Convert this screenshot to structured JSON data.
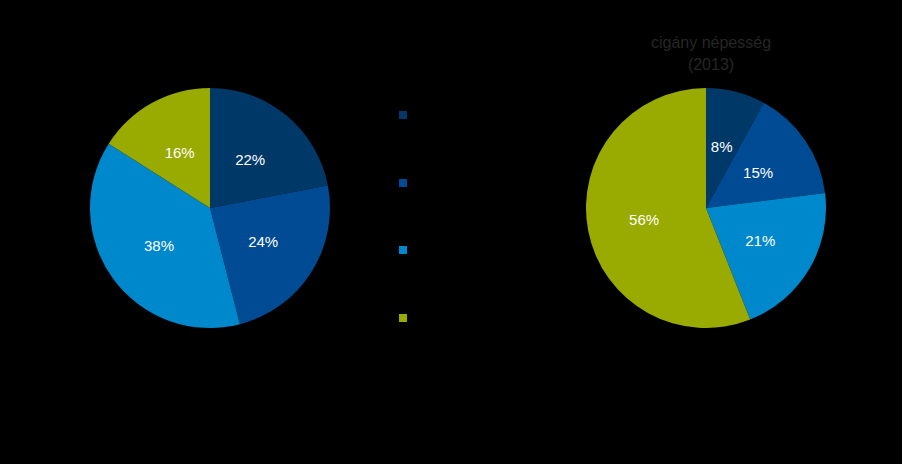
{
  "chart_data": [
    {
      "type": "pie",
      "values": [
        22,
        24,
        38,
        16
      ],
      "value_labels": [
        "22%",
        "24%",
        "38%",
        "16%"
      ],
      "colors": [
        "#003868",
        "#004b93",
        "#0088cc",
        "#99aa00"
      ],
      "data_labels": true
    },
    {
      "type": "pie",
      "title": "cigány népesség\n(2013)",
      "values": [
        8,
        15,
        21,
        56
      ],
      "value_labels": [
        "8%",
        "15%",
        "21%",
        "56%"
      ],
      "colors": [
        "#003868",
        "#004b93",
        "#0088cc",
        "#99aa00"
      ],
      "data_labels": true
    }
  ]
}
